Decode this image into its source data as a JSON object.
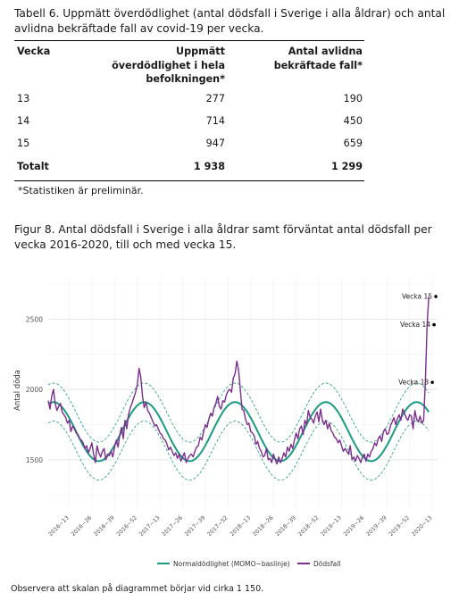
{
  "table": {
    "caption": "Tabell 6. Uppmätt överdödlighet (antal dödsfall i Sverige i alla åldrar) och antal avlidna bekräftade fall av covid-19 per vecka.",
    "headers": [
      "Vecka",
      "Uppmätt överdödlighet i hela befolkningen*",
      "Antal avlidna bekräftade fall*"
    ],
    "rows": [
      {
        "week": "13",
        "excess": "277",
        "deaths": "190"
      },
      {
        "week": "14",
        "excess": "714",
        "deaths": "450"
      },
      {
        "week": "15",
        "excess": "947",
        "deaths": "659"
      }
    ],
    "total": {
      "label": "Totalt",
      "excess": "1 938",
      "deaths": "1 299"
    },
    "footnote": "*Statistiken är preliminär."
  },
  "figure": {
    "caption": "Figur 8. Antal dödsfall i Sverige i alla åldrar samt förväntat antal dödsfall per vecka 2016-2020, till och med vecka 15."
  },
  "chart_data": {
    "type": "line",
    "title": "",
    "xlabel": "",
    "ylabel": "Antal döda",
    "ylim": [
      1150,
      2800
    ],
    "yticks": [
      1500,
      2000,
      2500
    ],
    "x_tick_labels": [
      "2016−13",
      "2016−26",
      "2016−39",
      "2016−52",
      "2017−13",
      "2017−26",
      "2017−39",
      "2017−52",
      "2018−13",
      "2018−26",
      "2018−39",
      "2018−52",
      "2019−13",
      "2019−26",
      "2019−39",
      "2019−52",
      "2020−13"
    ],
    "x_ticks_week_index": [
      12,
      25,
      38,
      51,
      64,
      77,
      90,
      103,
      116,
      129,
      142,
      155,
      168,
      181,
      194,
      207,
      220
    ],
    "x_range": [
      0,
      223
    ],
    "grid": true,
    "legend_position": "bottom",
    "colors": {
      "baseline": "#1a9a82",
      "deaths": "#7b2d8e",
      "band": "#1a9a82"
    },
    "series": [
      {
        "name": "Normaldödlighet (MOMO−baslinje)",
        "type": "smooth"
      },
      {
        "name": "Dödsfall",
        "type": "line",
        "values": [
          1920,
          1860,
          1950,
          2000,
          1900,
          1850,
          1880,
          1900,
          1840,
          1820,
          1800,
          1760,
          1780,
          1700,
          1740,
          1720,
          1690,
          1680,
          1650,
          1640,
          1620,
          1580,
          1600,
          1550,
          1580,
          1620,
          1540,
          1480,
          1600,
          1550,
          1520,
          1560,
          1580,
          1500,
          1540,
          1530,
          1560,
          1520,
          1590,
          1640,
          1590,
          1680,
          1730,
          1650,
          1780,
          1720,
          1820,
          1870,
          1900,
          1940,
          1980,
          2030,
          2150,
          2090,
          1950,
          1870,
          1910,
          1850,
          1830,
          1800,
          1770,
          1740,
          1750,
          1720,
          1690,
          1680,
          1650,
          1640,
          1610,
          1570,
          1590,
          1560,
          1530,
          1550,
          1510,
          1540,
          1490,
          1520,
          1550,
          1480,
          1510,
          1530,
          1540,
          1520,
          1560,
          1590,
          1600,
          1660,
          1640,
          1700,
          1750,
          1730,
          1790,
          1830,
          1810,
          1870,
          1900,
          1950,
          1880,
          1860,
          1920,
          1910,
          1960,
          1990,
          2000,
          1980,
          2080,
          2110,
          2200,
          2140,
          2000,
          1860,
          1850,
          1790,
          1750,
          1760,
          1700,
          1690,
          1670,
          1610,
          1630,
          1580,
          1560,
          1520,
          1530,
          1580,
          1500,
          1510,
          1480,
          1540,
          1500,
          1470,
          1520,
          1480,
          1510,
          1550,
          1520,
          1590,
          1560,
          1610,
          1580,
          1640,
          1690,
          1650,
          1720,
          1740,
          1680,
          1780,
          1750,
          1850,
          1800,
          1790,
          1760,
          1810,
          1840,
          1770,
          1860,
          1780,
          1750,
          1780,
          1720,
          1760,
          1710,
          1690,
          1660,
          1650,
          1620,
          1640,
          1600,
          1560,
          1580,
          1560,
          1540,
          1600,
          1500,
          1520,
          1490,
          1530,
          1510,
          1480,
          1520,
          1540,
          1490,
          1540,
          1520,
          1560,
          1580,
          1620,
          1600,
          1650,
          1670,
          1630,
          1700,
          1720,
          1680,
          1690,
          1740,
          1770,
          1800,
          1750,
          1790,
          1820,
          1780,
          1860,
          1830,
          1800,
          1780,
          1820,
          1810,
          1720,
          1850,
          1790,
          1770,
          1810,
          1760,
          1780,
          2050,
          2460,
          2660
        ]
      }
    ],
    "annotations": [
      {
        "label": "Vecka 13",
        "week_index": 220,
        "value": 2050
      },
      {
        "label": "Vecka 14",
        "week_index": 221,
        "value": 2460
      },
      {
        "label": "Vecka 15",
        "week_index": 222,
        "value": 2660
      }
    ]
  },
  "bottom_note": "Observera att skalan på diagrammet börjar vid cirka 1 150."
}
